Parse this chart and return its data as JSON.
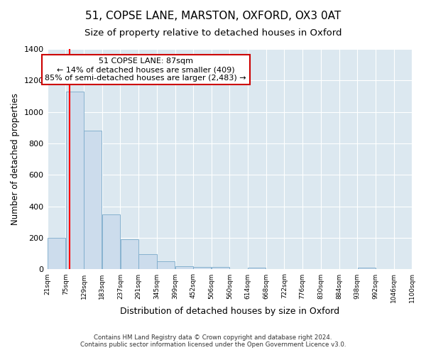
{
  "title": "51, COPSE LANE, MARSTON, OXFORD, OX3 0AT",
  "subtitle": "Size of property relative to detached houses in Oxford",
  "xlabel": "Distribution of detached houses by size in Oxford",
  "ylabel": "Number of detached properties",
  "bar_values": [
    200,
    1130,
    880,
    350,
    190,
    95,
    50,
    20,
    15,
    15,
    0,
    10,
    0,
    0,
    0,
    0,
    0,
    10,
    0,
    0
  ],
  "bin_edges": [
    21,
    75,
    129,
    183,
    237,
    291,
    345,
    399,
    452,
    506,
    560,
    614,
    668,
    722,
    776,
    830,
    884,
    938,
    992,
    1046,
    1100
  ],
  "tick_labels": [
    "21sqm",
    "75sqm",
    "129sqm",
    "183sqm",
    "237sqm",
    "291sqm",
    "345sqm",
    "399sqm",
    "452sqm",
    "506sqm",
    "560sqm",
    "614sqm",
    "668sqm",
    "722sqm",
    "776sqm",
    "830sqm",
    "884sqm",
    "938sqm",
    "992sqm",
    "1046sqm",
    "1100sqm"
  ],
  "bar_color": "#ccdcec",
  "bar_edge_color": "#7aaaca",
  "red_line_x": 87,
  "annotation_title": "51 COPSE LANE: 87sqm",
  "annotation_line1": "← 14% of detached houses are smaller (409)",
  "annotation_line2": "85% of semi-detached houses are larger (2,483) →",
  "annotation_box_color": "#ffffff",
  "annotation_box_edge": "#cc0000",
  "ylim": [
    0,
    1400
  ],
  "yticks": [
    0,
    200,
    400,
    600,
    800,
    1000,
    1200,
    1400
  ],
  "footer_line1": "Contains HM Land Registry data © Crown copyright and database right 2024.",
  "footer_line2": "Contains public sector information licensed under the Open Government Licence v3.0.",
  "background_color": "#ffffff",
  "plot_bg_color": "#dce8f0",
  "grid_color": "#ffffff",
  "title_fontsize": 11,
  "subtitle_fontsize": 9.5,
  "ylabel_fontsize": 8.5,
  "xlabel_fontsize": 9
}
